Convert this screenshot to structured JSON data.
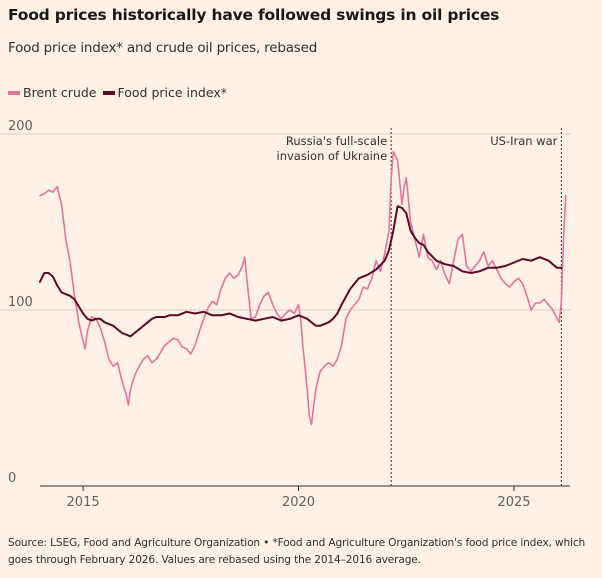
{
  "title": "Food prices historically have followed swings in oil prices",
  "subtitle": "Food price index* and crude oil prices, rebased",
  "colors": {
    "brent": "#e3749b",
    "food": "#5a0a26",
    "background": "#fff1e5",
    "grid": "#d7cdc4"
  },
  "legend": {
    "brent_label": "Brent crude",
    "food_label": "Food price index*"
  },
  "footer": {
    "line1": "Source: LSEG, Food and Agriculture Organization • *Food and Agriculture Organization's food price index, which",
    "line2": "goes through February 2026. Values are rebased using the 2014–2016 average."
  },
  "chart_data": {
    "type": "line",
    "title": "Food prices historically have followed swings in oil prices",
    "subtitle": "Food price index* and crude oil prices, rebased",
    "xlabel": "",
    "ylabel": "",
    "xlim": [
      2014,
      2026.3
    ],
    "ylim": [
      0,
      200
    ],
    "yticks": [
      0,
      100,
      200
    ],
    "xticks": [
      2015,
      2020,
      2025
    ],
    "xtick_labels": [
      "2015",
      "2020",
      "2025"
    ],
    "ytick_labels": [
      "0",
      "100",
      "200"
    ],
    "grid": true,
    "annotations": [
      {
        "x": 2022.15,
        "lines": [
          "Russia's full-scale",
          "invasion of Ukraine"
        ],
        "style": "dotted-vertical"
      },
      {
        "x": 2026.1,
        "lines": [
          "US-Iran war"
        ],
        "style": "dotted-vertical"
      }
    ],
    "series": [
      {
        "name": "Brent crude",
        "x": [
          2014.0,
          2014.1,
          2014.2,
          2014.3,
          2014.4,
          2014.5,
          2014.55,
          2014.6,
          2014.7,
          2014.8,
          2014.9,
          2015.0,
          2015.05,
          2015.1,
          2015.2,
          2015.3,
          2015.4,
          2015.5,
          2015.6,
          2015.7,
          2015.8,
          2015.9,
          2016.0,
          2016.05,
          2016.1,
          2016.2,
          2016.3,
          2016.4,
          2016.5,
          2016.6,
          2016.7,
          2016.8,
          2016.9,
          2017.0,
          2017.1,
          2017.2,
          2017.3,
          2017.4,
          2017.5,
          2017.6,
          2017.7,
          2017.8,
          2017.9,
          2018.0,
          2018.1,
          2018.2,
          2018.3,
          2018.4,
          2018.5,
          2018.6,
          2018.7,
          2018.75,
          2018.8,
          2018.9,
          2019.0,
          2019.1,
          2019.2,
          2019.3,
          2019.4,
          2019.5,
          2019.6,
          2019.7,
          2019.8,
          2019.9,
          2020.0,
          2020.05,
          2020.1,
          2020.2,
          2020.25,
          2020.3,
          2020.35,
          2020.4,
          2020.5,
          2020.6,
          2020.7,
          2020.8,
          2020.9,
          2021.0,
          2021.1,
          2021.2,
          2021.3,
          2021.4,
          2021.5,
          2021.6,
          2021.7,
          2021.8,
          2021.9,
          2022.0,
          2022.1,
          2022.15,
          2022.2,
          2022.3,
          2022.4,
          2022.45,
          2022.5,
          2022.6,
          2022.7,
          2022.8,
          2022.9,
          2023.0,
          2023.1,
          2023.2,
          2023.3,
          2023.4,
          2023.5,
          2023.6,
          2023.7,
          2023.8,
          2023.9,
          2024.0,
          2024.1,
          2024.2,
          2024.3,
          2024.4,
          2024.5,
          2024.6,
          2024.7,
          2024.8,
          2024.9,
          2025.0,
          2025.1,
          2025.2,
          2025.3,
          2025.4,
          2025.5,
          2025.6,
          2025.7,
          2025.8,
          2025.9,
          2026.0,
          2026.05,
          2026.1,
          2026.15,
          2026.2
        ],
        "values": [
          165,
          166,
          168,
          167,
          170,
          160,
          150,
          140,
          127,
          108,
          93,
          82,
          78,
          88,
          96,
          95,
          90,
          82,
          72,
          68,
          70,
          60,
          52,
          46,
          55,
          63,
          68,
          72,
          74,
          70,
          72,
          76,
          80,
          82,
          84,
          83,
          79,
          78,
          75,
          80,
          88,
          95,
          101,
          105,
          103,
          112,
          118,
          121,
          118,
          120,
          125,
          130,
          118,
          95,
          96,
          103,
          108,
          110,
          103,
          98,
          95,
          98,
          100,
          98,
          103,
          95,
          80,
          55,
          40,
          35,
          45,
          55,
          65,
          68,
          70,
          68,
          72,
          80,
          95,
          100,
          103,
          106,
          113,
          112,
          118,
          128,
          122,
          132,
          145,
          175,
          190,
          185,
          160,
          170,
          175,
          150,
          140,
          130,
          143,
          130,
          128,
          123,
          128,
          120,
          115,
          128,
          140,
          143,
          125,
          122,
          125,
          128,
          133,
          125,
          128,
          123,
          118,
          115,
          113,
          116,
          118,
          115,
          108,
          100,
          104,
          104,
          106,
          103,
          100,
          95,
          93,
          105,
          140,
          165
        ]
      },
      {
        "name": "Food price index*",
        "x": [
          2014.0,
          2014.1,
          2014.2,
          2014.3,
          2014.4,
          2014.5,
          2014.6,
          2014.7,
          2014.8,
          2014.9,
          2015.0,
          2015.1,
          2015.2,
          2015.3,
          2015.4,
          2015.5,
          2015.6,
          2015.7,
          2015.8,
          2015.9,
          2016.0,
          2016.1,
          2016.2,
          2016.3,
          2016.4,
          2016.5,
          2016.6,
          2016.7,
          2016.8,
          2016.9,
          2017.0,
          2017.2,
          2017.4,
          2017.6,
          2017.8,
          2018.0,
          2018.2,
          2018.4,
          2018.6,
          2018.8,
          2019.0,
          2019.2,
          2019.4,
          2019.6,
          2019.8,
          2020.0,
          2020.1,
          2020.2,
          2020.3,
          2020.4,
          2020.5,
          2020.6,
          2020.7,
          2020.8,
          2020.9,
          2021.0,
          2021.2,
          2021.4,
          2021.6,
          2021.8,
          2022.0,
          2022.1,
          2022.2,
          2022.3,
          2022.4,
          2022.5,
          2022.6,
          2022.7,
          2022.8,
          2022.9,
          2023.0,
          2023.2,
          2023.4,
          2023.6,
          2023.8,
          2024.0,
          2024.2,
          2024.4,
          2024.6,
          2024.8,
          2025.0,
          2025.2,
          2025.4,
          2025.6,
          2025.8,
          2026.0,
          2026.1
        ],
        "values": [
          116,
          121,
          121,
          119,
          114,
          110,
          109,
          108,
          106,
          102,
          98,
          95,
          94,
          95,
          95,
          93,
          92,
          91,
          89,
          87,
          86,
          85,
          87,
          89,
          91,
          93,
          95,
          96,
          96,
          96,
          97,
          97,
          99,
          98,
          99,
          97,
          97,
          98,
          96,
          95,
          94,
          95,
          96,
          94,
          95,
          97,
          96,
          95,
          93,
          91,
          91,
          92,
          93,
          95,
          98,
          103,
          112,
          118,
          120,
          123,
          128,
          134,
          145,
          159,
          158,
          155,
          145,
          141,
          138,
          137,
          133,
          128,
          126,
          125,
          122,
          121,
          122,
          124,
          124,
          125,
          127,
          129,
          128,
          130,
          128,
          124,
          124
        ]
      }
    ]
  }
}
